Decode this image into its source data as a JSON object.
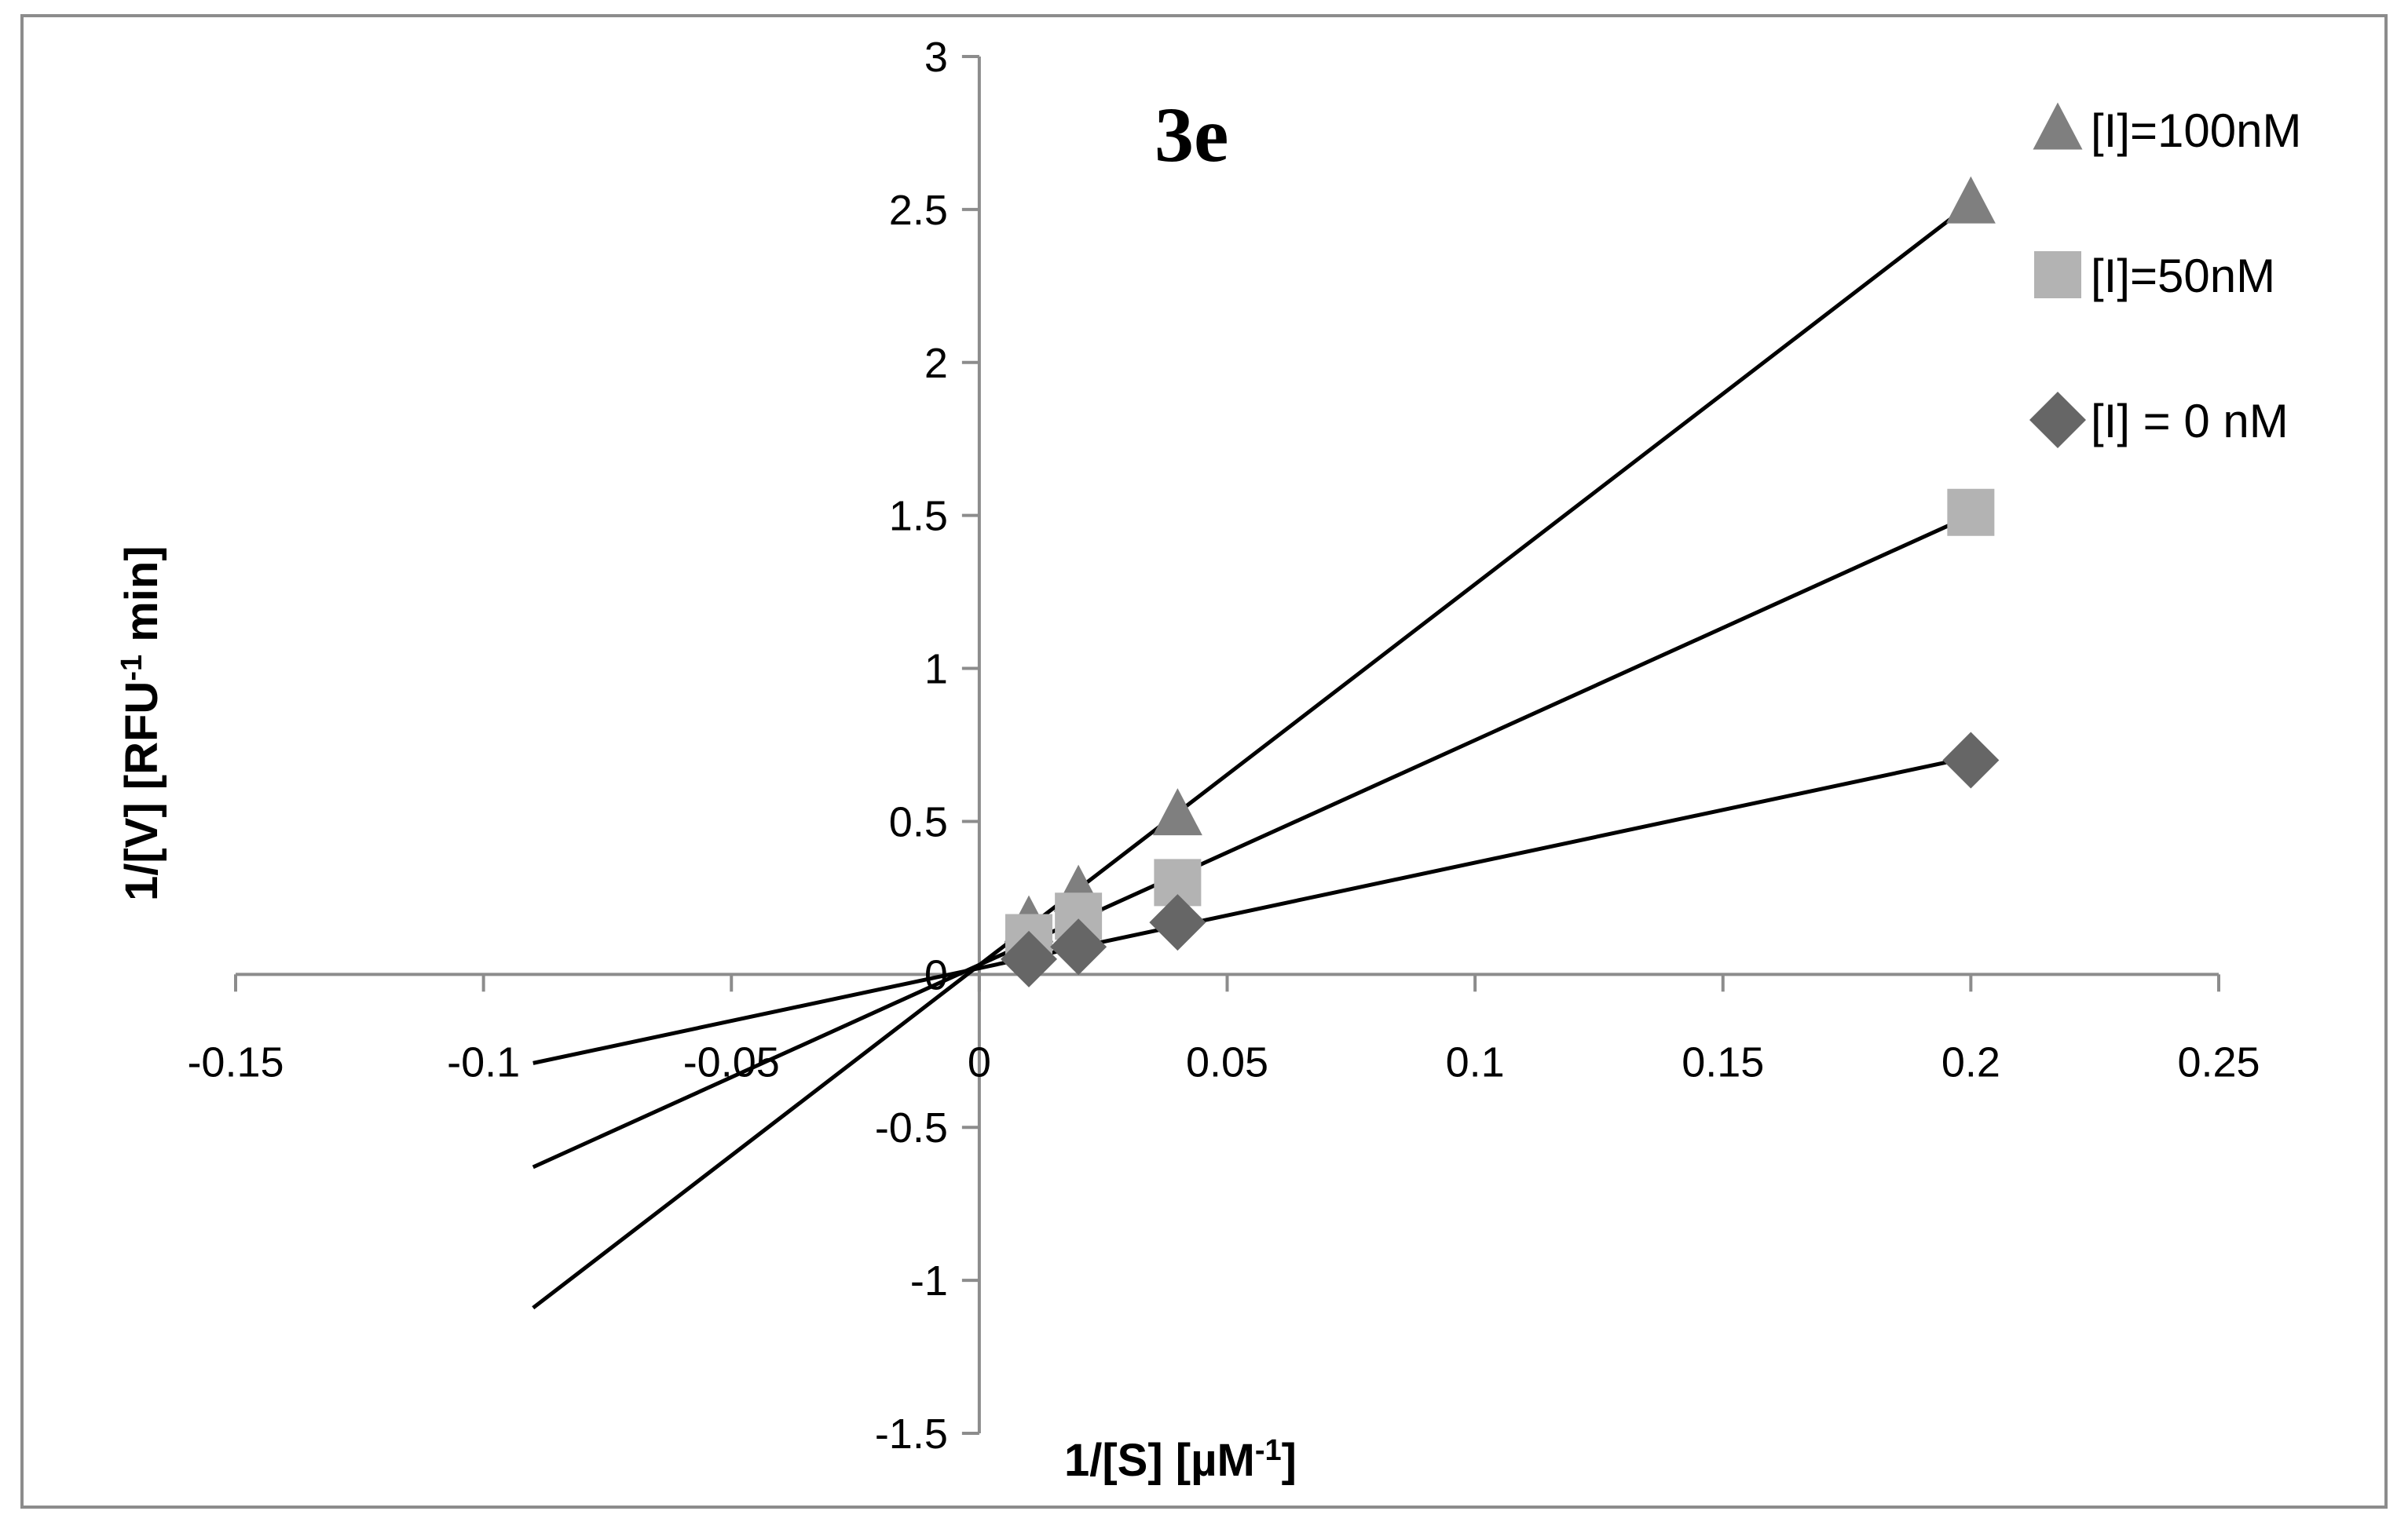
{
  "chart_data": {
    "type": "scatter",
    "title": "3e",
    "xlabel": "1/[S] [µM",
    "xlabel_sup": "-1",
    "xlabel_end": "]",
    "ylabel": "1/[V] [RFU",
    "ylabel_sup": "-1",
    "ylabel_end": " min]",
    "xlim": [
      -0.15,
      0.25
    ],
    "ylim": [
      -1.5,
      3
    ],
    "x_ticks": [
      -0.15,
      -0.1,
      -0.05,
      0,
      0.05,
      0.1,
      0.15,
      0.2,
      0.25
    ],
    "x_tick_labels": [
      "-0.15",
      "-0.1",
      "-0.05",
      "0",
      "0.05",
      "0.1",
      "0.15",
      "0.2",
      "0.25"
    ],
    "y_ticks": [
      -1.5,
      -1,
      -0.5,
      0,
      0.5,
      1,
      1.5,
      2,
      2.5,
      3
    ],
    "y_tick_labels": [
      "-1.5",
      "-1",
      "-0.5",
      "0",
      "0.5",
      "1",
      "1.5",
      "2",
      "2.5",
      "3"
    ],
    "grid": false,
    "legend_position": "top-right",
    "series": [
      {
        "name": "[I]=100nM",
        "marker": "triangle",
        "color": "#7f7f7f",
        "x": [
          0.01,
          0.02,
          0.04,
          0.2
        ],
        "y": [
          0.17,
          0.27,
          0.52,
          2.52
        ],
        "fit_line": {
          "x": [
            -0.09,
            0.2
          ],
          "y": [
            -1.09,
            2.52
          ]
        }
      },
      {
        "name": "[I]=50nM",
        "marker": "square",
        "color": "#b3b3b3",
        "x": [
          0.01,
          0.02,
          0.04,
          0.2
        ],
        "y": [
          0.12,
          0.19,
          0.3,
          1.51
        ],
        "fit_line": {
          "x": [
            -0.09,
            0.2
          ],
          "y": [
            -0.63,
            1.5
          ]
        }
      },
      {
        "name": "[I] = 0 nM",
        "marker": "diamond",
        "color": "#666666",
        "x": [
          0.01,
          0.02,
          0.04,
          0.2
        ],
        "y": [
          0.05,
          0.09,
          0.17,
          0.7
        ],
        "fit_line": {
          "x": [
            -0.09,
            0.2
          ],
          "y": [
            -0.29,
            0.71
          ]
        }
      }
    ]
  }
}
